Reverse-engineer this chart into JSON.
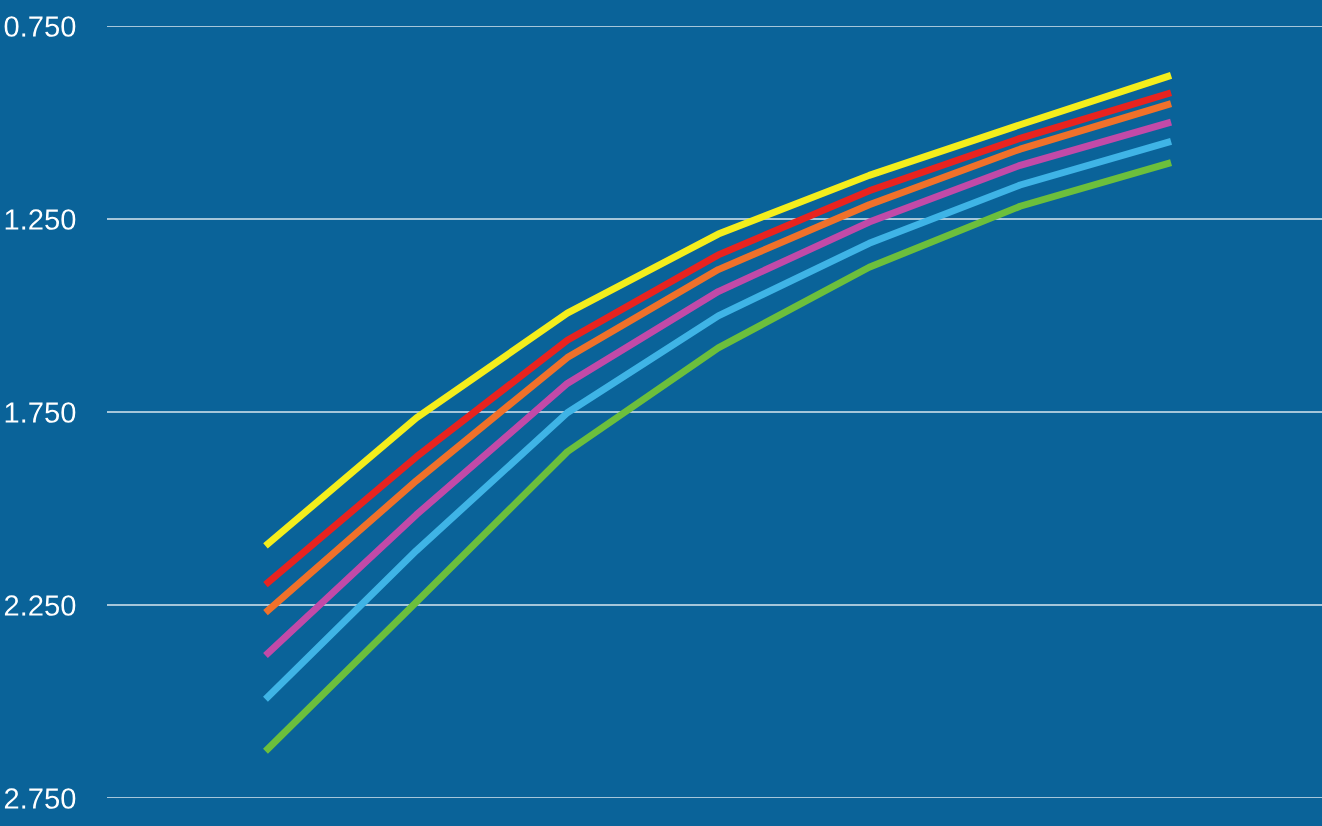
{
  "chart_data": {
    "type": "line",
    "categories": [
      null,
      null,
      null,
      null,
      null,
      null,
      null
    ],
    "series": [
      {
        "color": "#f4ee1c",
        "values": [
          2.097,
          1.765,
          1.494,
          1.289,
          1.137,
          1.006,
          0.878
        ]
      },
      {
        "color": "#e8231f",
        "values": [
          2.197,
          1.866,
          1.564,
          1.343,
          1.177,
          1.041,
          0.923
        ]
      },
      {
        "color": "#f0712a",
        "values": [
          2.27,
          1.928,
          1.609,
          1.381,
          1.213,
          1.069,
          0.951
        ]
      },
      {
        "color": "#c24aa8",
        "values": [
          2.381,
          2.016,
          1.676,
          1.438,
          1.258,
          1.111,
          0.999
        ]
      },
      {
        "color": "#3fb4e6",
        "values": [
          2.494,
          2.109,
          1.752,
          1.501,
          1.313,
          1.162,
          1.049
        ]
      },
      {
        "color": "#6cbf3c",
        "values": [
          2.629,
          2.242,
          1.853,
          1.584,
          1.375,
          1.217,
          1.104
        ]
      }
    ],
    "ylim": [
      2.75,
      0.75
    ],
    "yticks": [
      {
        "value": 0.75,
        "label": "0.750"
      },
      {
        "value": 1.25,
        "label": "1.250"
      },
      {
        "value": 1.75,
        "label": "1.750"
      },
      {
        "value": 2.25,
        "label": "2.250"
      },
      {
        "value": 2.75,
        "label": "2.750"
      }
    ],
    "grid": "y",
    "marker": "none",
    "line_style": "solid",
    "tick_labels": "y"
  }
}
